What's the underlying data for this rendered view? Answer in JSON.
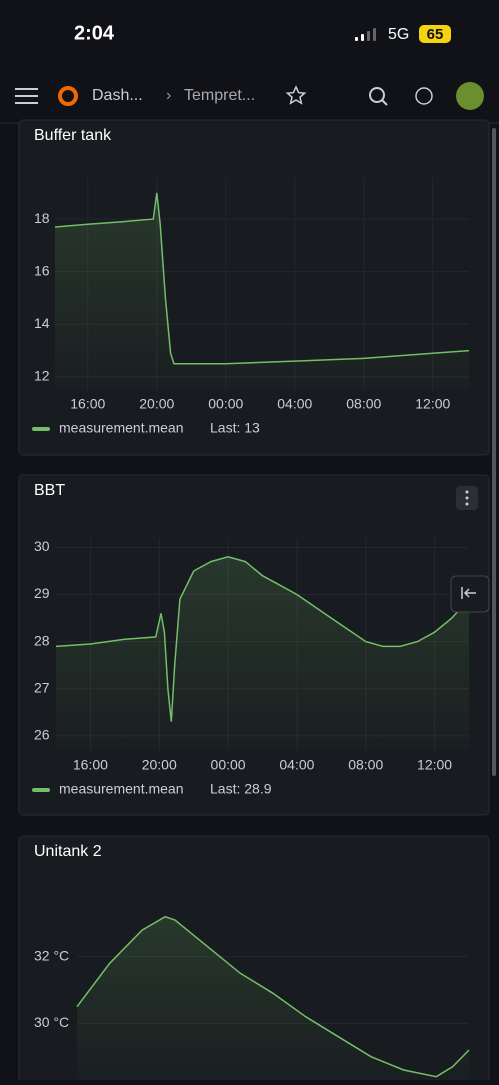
{
  "status_bar": {
    "time": "2:04",
    "network": "5G",
    "battery": "65"
  },
  "nav": {
    "breadcrumb": [
      "Dash...",
      "Tempret..."
    ]
  },
  "chart_data": [
    {
      "type": "line",
      "title": "Buffer tank",
      "x": [
        14.1,
        16,
        18,
        19.8,
        20.0,
        20.2,
        20.5,
        20.8,
        21,
        22,
        24,
        28,
        32,
        36,
        38.1
      ],
      "series": [
        {
          "name": "measurement.mean",
          "color": "#73bf69",
          "values": [
            17.7,
            17.8,
            17.9,
            18.0,
            19.0,
            17.8,
            15,
            12.9,
            12.5,
            12.5,
            12.5,
            12.6,
            12.7,
            12.9,
            13.0
          ]
        }
      ],
      "legend_stat": "Last: 13",
      "xlim": [
        14.1,
        38.1
      ],
      "xticks": [
        {
          "value": 16,
          "label": "16:00"
        },
        {
          "value": 20,
          "label": "20:00"
        },
        {
          "value": 24,
          "label": "00:00"
        },
        {
          "value": 28,
          "label": "04:00"
        },
        {
          "value": 32,
          "label": "08:00"
        },
        {
          "value": 36,
          "label": "12:00"
        }
      ],
      "ylim": [
        11.5,
        19.6
      ],
      "yticks": [
        12,
        14,
        16,
        18
      ],
      "grid": true
    },
    {
      "type": "line",
      "title": "BBT",
      "x": [
        14,
        16,
        18,
        19.8,
        20.1,
        20.3,
        20.5,
        20.7,
        20.9,
        21.2,
        22,
        23,
        24,
        25,
        26,
        28,
        30,
        32,
        33,
        34,
        35,
        36,
        37,
        38
      ],
      "series": [
        {
          "name": "measurement.mean",
          "color": "#73bf69",
          "values": [
            27.9,
            27.95,
            28.05,
            28.1,
            28.6,
            28.2,
            27.0,
            26.3,
            27.5,
            28.9,
            29.5,
            29.7,
            29.8,
            29.7,
            29.4,
            29.0,
            28.5,
            28.0,
            27.9,
            27.9,
            28.0,
            28.2,
            28.5,
            28.9
          ]
        }
      ],
      "legend_stat": "Last: 28.9",
      "xlim": [
        14.0,
        38.0
      ],
      "xticks": [
        {
          "value": 16,
          "label": "16:00"
        },
        {
          "value": 20,
          "label": "20:00"
        },
        {
          "value": 24,
          "label": "00:00"
        },
        {
          "value": 28,
          "label": "04:00"
        },
        {
          "value": 32,
          "label": "08:00"
        },
        {
          "value": 36,
          "label": "12:00"
        }
      ],
      "ylim": [
        25.7,
        30.2
      ],
      "yticks": [
        26,
        27,
        28,
        29,
        30
      ],
      "grid": true
    },
    {
      "type": "line",
      "title": "Unitank 2",
      "x": [
        14,
        16,
        18,
        19.4,
        20,
        22,
        24,
        26,
        28,
        30,
        32,
        34,
        36,
        37,
        38
      ],
      "series": [
        {
          "name": "measurement.mean",
          "color": "#73bf69",
          "values": [
            30.5,
            31.8,
            32.8,
            33.2,
            33.1,
            32.3,
            31.5,
            30.9,
            30.2,
            29.6,
            29.0,
            28.6,
            28.4,
            28.7,
            29.2
          ]
        }
      ],
      "xlim": [
        14,
        38
      ],
      "ylim": [
        28.3,
        34.0
      ],
      "yticks": [
        {
          "value": 30,
          "label": "30 °C"
        },
        {
          "value": 32,
          "label": "32 °C"
        }
      ],
      "grid": true
    }
  ]
}
